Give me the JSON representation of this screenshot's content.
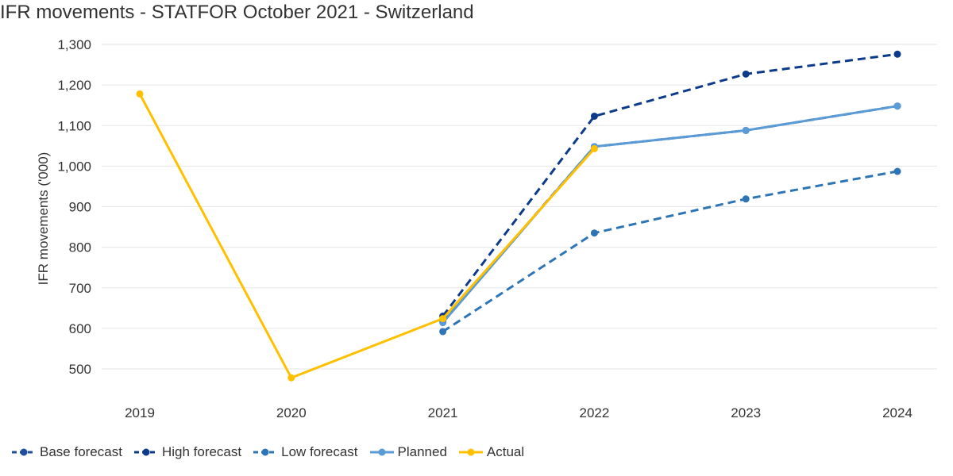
{
  "chart_data": {
    "type": "line",
    "title": "IFR movements - STATFOR October 2021 - Switzerland",
    "ylabel": "IFR movements ('000)",
    "xlabel": "",
    "categories": [
      "2019",
      "2020",
      "2021",
      "2022",
      "2023",
      "2024"
    ],
    "ylim": [
      450,
      1300
    ],
    "yticks": [
      500,
      600,
      700,
      800,
      900,
      1000,
      1100,
      1200,
      1300
    ],
    "ytick_labels": [
      "500",
      "600",
      "700",
      "800",
      "900",
      "1,000",
      "1,100",
      "1,200",
      "1,300"
    ],
    "grid": true,
    "legend_position": "bottom",
    "series": [
      {
        "name": "Base forecast",
        "color": "#1f4e9c",
        "dash": true,
        "values": [
          null,
          null,
          617,
          1048,
          1088,
          1148
        ]
      },
      {
        "name": "High forecast",
        "color": "#0d3b8a",
        "dash": true,
        "values": [
          null,
          null,
          630,
          1123,
          1227,
          1276
        ]
      },
      {
        "name": "Low forecast",
        "color": "#2e75b6",
        "dash": true,
        "values": [
          null,
          null,
          592,
          835,
          919,
          987
        ]
      },
      {
        "name": "Planned",
        "color": "#5b9bd5",
        "dash": false,
        "values": [
          null,
          null,
          614,
          1048,
          1088,
          1148
        ]
      },
      {
        "name": "Actual",
        "color": "#ffc000",
        "dash": false,
        "values": [
          1178,
          478,
          624,
          1043,
          null,
          null
        ]
      }
    ]
  }
}
